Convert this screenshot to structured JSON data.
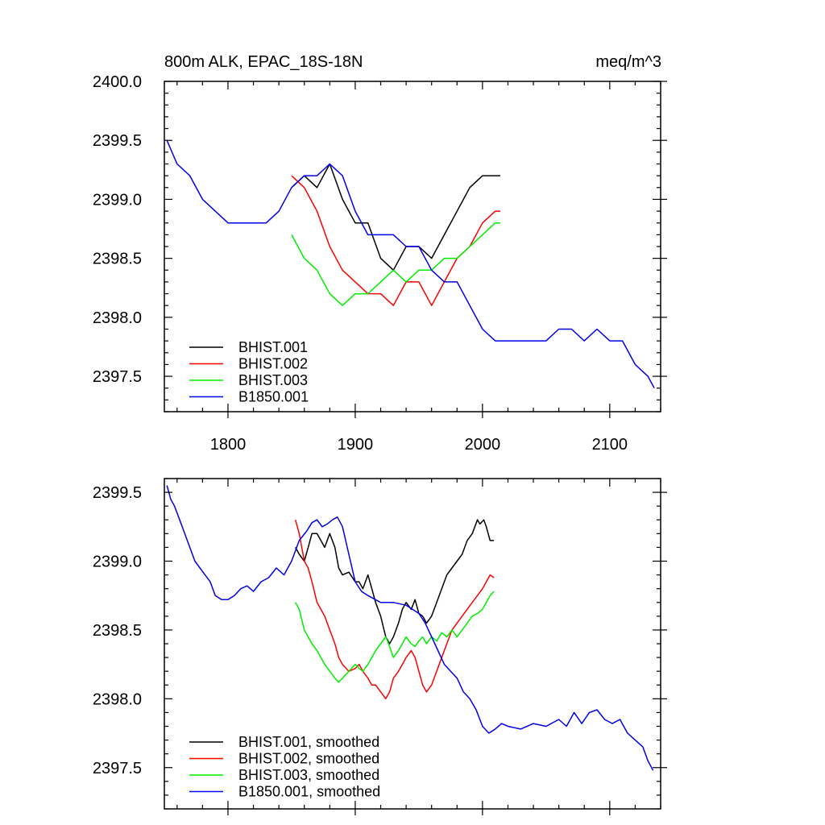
{
  "chart_data": [
    {
      "type": "line",
      "title_left": "800m ALK, EPAC_18S-18N",
      "title_right": "meq/m^3",
      "xlabel": "",
      "ylabel": "",
      "xlim": [
        1750,
        2140
      ],
      "ylim": [
        2397.2,
        2400.0
      ],
      "xticks": [
        1800,
        1900,
        2000,
        2100
      ],
      "xtick_labels": [
        "1800",
        "1900",
        "2000",
        "2100"
      ],
      "yticks": [
        2397.5,
        2398.0,
        2398.5,
        2399.0,
        2399.5,
        2400.0
      ],
      "ytick_labels": [
        "2397.5",
        "2398.0",
        "2398.5",
        "2399.0",
        "2399.5",
        "2400.0"
      ],
      "legend_position": "bottom-left",
      "series": [
        {
          "name": "BHIST.001",
          "color": "#000000",
          "x": [
            1850,
            1860,
            1870,
            1880,
            1890,
            1900,
            1910,
            1920,
            1930,
            1940,
            1950,
            1960,
            1970,
            1980,
            1990,
            2000,
            2010,
            2014
          ],
          "values": [
            2399.1,
            2399.2,
            2399.1,
            2399.3,
            2399.0,
            2398.8,
            2398.8,
            2398.5,
            2398.4,
            2398.6,
            2398.6,
            2398.5,
            2398.7,
            2398.9,
            2399.1,
            2399.2,
            2399.2,
            2399.2
          ]
        },
        {
          "name": "BHIST.002",
          "color": "#ff0000",
          "x": [
            1850,
            1860,
            1870,
            1880,
            1890,
            1900,
            1910,
            1920,
            1930,
            1940,
            1950,
            1960,
            1970,
            1980,
            1990,
            2000,
            2010,
            2014
          ],
          "values": [
            2399.2,
            2399.1,
            2398.9,
            2398.6,
            2398.4,
            2398.3,
            2398.2,
            2398.2,
            2398.1,
            2398.3,
            2398.3,
            2398.1,
            2398.3,
            2398.5,
            2398.6,
            2398.8,
            2398.9,
            2398.9
          ]
        },
        {
          "name": "BHIST.003",
          "color": "#00ee00",
          "x": [
            1850,
            1860,
            1870,
            1880,
            1890,
            1900,
            1910,
            1920,
            1930,
            1940,
            1950,
            1960,
            1970,
            1980,
            1990,
            2000,
            2010,
            2014
          ],
          "values": [
            2398.7,
            2398.5,
            2398.4,
            2398.2,
            2398.1,
            2398.2,
            2398.2,
            2398.3,
            2398.4,
            2398.3,
            2398.4,
            2398.4,
            2398.5,
            2398.5,
            2398.6,
            2398.7,
            2398.8,
            2398.8
          ]
        },
        {
          "name": "B1850.001",
          "color": "#0000ee",
          "x": [
            1752,
            1760,
            1770,
            1780,
            1790,
            1800,
            1810,
            1820,
            1830,
            1840,
            1850,
            1860,
            1870,
            1880,
            1890,
            1900,
            1910,
            1920,
            1930,
            1940,
            1950,
            1960,
            1970,
            1980,
            1990,
            2000,
            2010,
            2020,
            2030,
            2040,
            2050,
            2060,
            2070,
            2080,
            2090,
            2100,
            2110,
            2120,
            2130,
            2135
          ],
          "values": [
            2399.5,
            2399.3,
            2399.2,
            2399.0,
            2398.9,
            2398.8,
            2398.8,
            2398.8,
            2398.8,
            2398.9,
            2399.1,
            2399.2,
            2399.2,
            2399.3,
            2399.2,
            2398.9,
            2398.7,
            2398.7,
            2398.7,
            2398.6,
            2398.6,
            2398.4,
            2398.3,
            2398.3,
            2398.1,
            2397.9,
            2397.8,
            2397.8,
            2397.8,
            2397.8,
            2397.8,
            2397.9,
            2397.9,
            2397.8,
            2397.9,
            2397.8,
            2397.8,
            2397.6,
            2397.5,
            2397.4
          ]
        }
      ]
    },
    {
      "type": "line",
      "xlim": [
        1750,
        2140
      ],
      "ylim": [
        2397.2,
        2399.6
      ],
      "xticks": [
        1800,
        1900,
        2000,
        2100
      ],
      "yticks": [
        2397.5,
        2398.0,
        2398.5,
        2399.0,
        2399.5
      ],
      "ytick_labels": [
        "2397.5",
        "2398.0",
        "2398.5",
        "2399.0",
        "2399.5"
      ],
      "legend_position": "bottom-left",
      "series": [
        {
          "name": "BHIST.001, smoothed",
          "color": "#000000",
          "x": [
            1853,
            1856,
            1860,
            1863,
            1866,
            1870,
            1873,
            1876,
            1880,
            1884,
            1887,
            1890,
            1895,
            1900,
            1903,
            1906,
            1910,
            1913,
            1916,
            1920,
            1924,
            1927,
            1930,
            1934,
            1937,
            1940,
            1944,
            1947,
            1950,
            1953,
            1956,
            1960,
            1964,
            1968,
            1972,
            1976,
            1980,
            1984,
            1988,
            1992,
            1996,
            1998,
            2001,
            2003,
            2006,
            2009
          ],
          "values": [
            2399.1,
            2399.05,
            2399.0,
            2399.1,
            2399.2,
            2399.2,
            2399.15,
            2399.1,
            2399.2,
            2399.1,
            2398.95,
            2398.9,
            2398.92,
            2398.85,
            2398.85,
            2398.8,
            2398.9,
            2398.8,
            2398.7,
            2398.6,
            2398.45,
            2398.4,
            2398.45,
            2398.55,
            2398.65,
            2398.7,
            2398.65,
            2398.72,
            2398.62,
            2398.6,
            2398.55,
            2398.6,
            2398.7,
            2398.8,
            2398.9,
            2398.95,
            2399.0,
            2399.05,
            2399.15,
            2399.2,
            2399.3,
            2399.27,
            2399.3,
            2399.25,
            2399.15,
            2399.15
          ]
        },
        {
          "name": "BHIST.002, smoothed",
          "color": "#ff0000",
          "x": [
            1853,
            1856,
            1860,
            1863,
            1866,
            1870,
            1873,
            1876,
            1880,
            1884,
            1887,
            1890,
            1895,
            1900,
            1903,
            1906,
            1910,
            1913,
            1916,
            1920,
            1924,
            1927,
            1930,
            1934,
            1937,
            1940,
            1944,
            1947,
            1950,
            1953,
            1956,
            1960,
            1964,
            1968,
            1972,
            1976,
            1980,
            1984,
            1988,
            1992,
            1996,
            2000,
            2003,
            2006,
            2009
          ],
          "values": [
            2399.3,
            2399.2,
            2399.0,
            2398.95,
            2398.85,
            2398.7,
            2398.65,
            2398.6,
            2398.5,
            2398.4,
            2398.3,
            2398.25,
            2398.2,
            2398.22,
            2398.25,
            2398.2,
            2398.15,
            2398.1,
            2398.1,
            2398.05,
            2398.0,
            2398.05,
            2398.15,
            2398.2,
            2398.25,
            2398.3,
            2398.35,
            2398.3,
            2398.2,
            2398.1,
            2398.05,
            2398.1,
            2398.2,
            2398.3,
            2398.4,
            2398.5,
            2398.55,
            2398.6,
            2398.65,
            2398.7,
            2398.75,
            2398.8,
            2398.85,
            2398.9,
            2398.88
          ]
        },
        {
          "name": "BHIST.003, smoothed",
          "color": "#00ee00",
          "x": [
            1853,
            1856,
            1860,
            1863,
            1866,
            1870,
            1873,
            1876,
            1880,
            1884,
            1887,
            1890,
            1895,
            1900,
            1903,
            1906,
            1910,
            1913,
            1916,
            1920,
            1924,
            1927,
            1930,
            1934,
            1937,
            1940,
            1944,
            1947,
            1950,
            1953,
            1956,
            1960,
            1964,
            1968,
            1972,
            1976,
            1980,
            1984,
            1988,
            1992,
            1996,
            2000,
            2003,
            2006,
            2009
          ],
          "values": [
            2398.7,
            2398.65,
            2398.5,
            2398.45,
            2398.4,
            2398.35,
            2398.3,
            2398.25,
            2398.2,
            2398.15,
            2398.12,
            2398.15,
            2398.2,
            2398.25,
            2398.22,
            2398.2,
            2398.25,
            2398.3,
            2398.35,
            2398.4,
            2398.45,
            2398.38,
            2398.3,
            2398.35,
            2398.4,
            2398.45,
            2398.4,
            2398.38,
            2398.42,
            2398.45,
            2398.4,
            2398.45,
            2398.42,
            2398.48,
            2398.45,
            2398.5,
            2398.45,
            2398.5,
            2398.55,
            2398.6,
            2398.62,
            2398.65,
            2398.7,
            2398.75,
            2398.78
          ]
        },
        {
          "name": "B1850.001, smoothed",
          "color": "#0000ee",
          "x": [
            1752,
            1755,
            1758,
            1762,
            1766,
            1770,
            1774,
            1778,
            1782,
            1786,
            1790,
            1795,
            1800,
            1805,
            1810,
            1815,
            1820,
            1826,
            1832,
            1838,
            1844,
            1850,
            1856,
            1862,
            1866,
            1870,
            1874,
            1878,
            1882,
            1886,
            1890,
            1895,
            1900,
            1905,
            1910,
            1920,
            1930,
            1940,
            1950,
            1955,
            1960,
            1965,
            1970,
            1975,
            1980,
            1985,
            1990,
            1995,
            2000,
            2005,
            2010,
            2015,
            2020,
            2030,
            2040,
            2050,
            2060,
            2066,
            2072,
            2078,
            2084,
            2090,
            2096,
            2102,
            2108,
            2114,
            2120,
            2126,
            2130,
            2134
          ],
          "values": [
            2399.55,
            2399.45,
            2399.4,
            2399.3,
            2399.2,
            2399.1,
            2399.0,
            2398.95,
            2398.9,
            2398.85,
            2398.75,
            2398.72,
            2398.72,
            2398.75,
            2398.8,
            2398.82,
            2398.78,
            2398.85,
            2398.88,
            2398.95,
            2398.9,
            2399.0,
            2399.15,
            2399.22,
            2399.28,
            2399.3,
            2399.25,
            2399.27,
            2399.3,
            2399.32,
            2399.25,
            2399.05,
            2398.85,
            2398.78,
            2398.75,
            2398.7,
            2398.7,
            2398.68,
            2398.62,
            2398.55,
            2398.45,
            2398.35,
            2398.25,
            2398.2,
            2398.15,
            2398.05,
            2398.0,
            2397.92,
            2397.8,
            2397.75,
            2397.78,
            2397.82,
            2397.8,
            2397.78,
            2397.82,
            2397.8,
            2397.85,
            2397.8,
            2397.9,
            2397.82,
            2397.9,
            2397.92,
            2397.85,
            2397.82,
            2397.85,
            2397.75,
            2397.7,
            2397.65,
            2397.55,
            2397.48
          ]
        }
      ]
    }
  ]
}
